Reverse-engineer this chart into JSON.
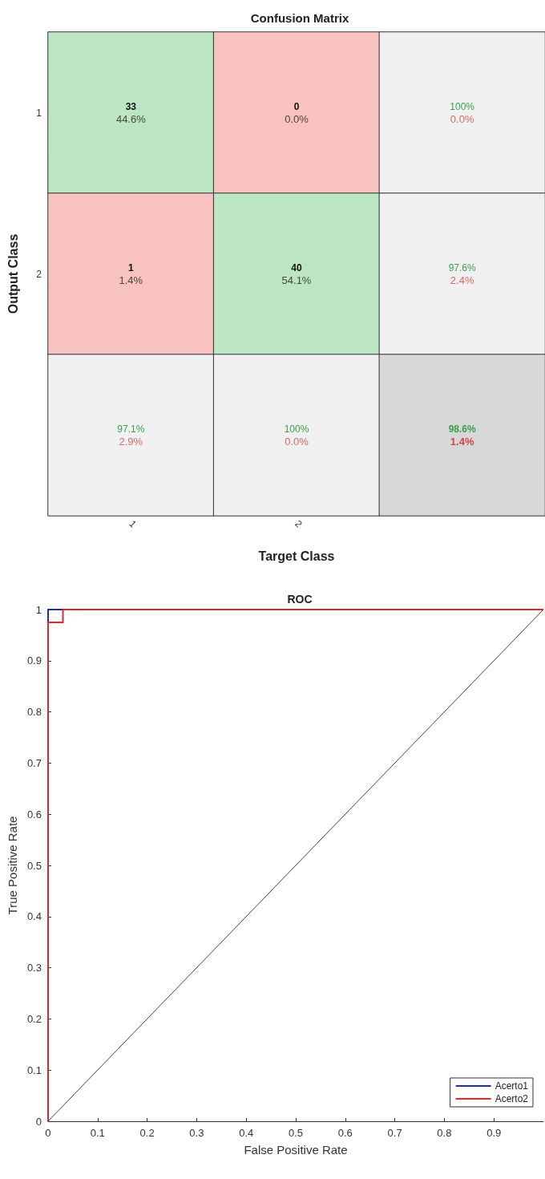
{
  "chart_data": [
    {
      "type": "heatmap",
      "title": "Confusion Matrix",
      "xlabel": "Target Class",
      "ylabel": "Output Class",
      "categories": [
        "1",
        "2",
        null
      ],
      "y_categories": [
        "1",
        "2",
        null
      ],
      "cells": [
        [
          33,
          0,
          100
        ],
        [
          1,
          40,
          97.6
        ],
        [
          97.1,
          100,
          98.6
        ]
      ],
      "cell_labels": [
        [
          "33",
          "0",
          "100%"
        ],
        [
          "1",
          "40",
          "97.6%"
        ],
        [
          "97.1%",
          "100%",
          "98.6%"
        ]
      ],
      "annotations": [
        "44.6%",
        "0.0%",
        "0.0%",
        "1.4%",
        "54.1%",
        "2.4%",
        "2.9%",
        "0.0%",
        "1.4%"
      ],
      "colors": [
        [
          "#bce5c3",
          "#f7c2bf",
          "#f0f0f0"
        ],
        [
          "#f7c2bf",
          "#bce5c3",
          "#f0f0f0"
        ],
        [
          "#f0f0f0",
          "#f0f0f0",
          "#d8d8d8"
        ]
      ]
    },
    {
      "type": "line",
      "title": "ROC",
      "xlabel": "False Positive Rate",
      "ylabel": "True Positive Rate",
      "xlim": [
        0,
        1
      ],
      "ylim": [
        0,
        1
      ],
      "xticks": [
        0,
        0.1,
        0.2,
        0.3,
        0.4,
        0.5,
        0.6,
        0.7,
        0.8,
        0.9
      ],
      "yticks": [
        0,
        0.1,
        0.2,
        0.3,
        0.4,
        0.5,
        0.6,
        0.7,
        0.8,
        0.9,
        1
      ],
      "legend": "bottom right",
      "grid": false,
      "series": [
        {
          "name": "Acerto1",
          "color": "#1f2fa8",
          "x": [
            0,
            0,
            0.03
          ],
          "values": [
            0.975,
            1,
            1
          ]
        },
        {
          "name": "Acerto2",
          "color": "#e02828",
          "x": [
            0,
            0,
            0.03,
            0.03,
            1
          ],
          "values": [
            0,
            0.975,
            0.975,
            1,
            1
          ]
        },
        {
          "color": "#404040",
          "x": [
            0,
            1
          ],
          "values": [
            0,
            1
          ]
        }
      ]
    }
  ]
}
